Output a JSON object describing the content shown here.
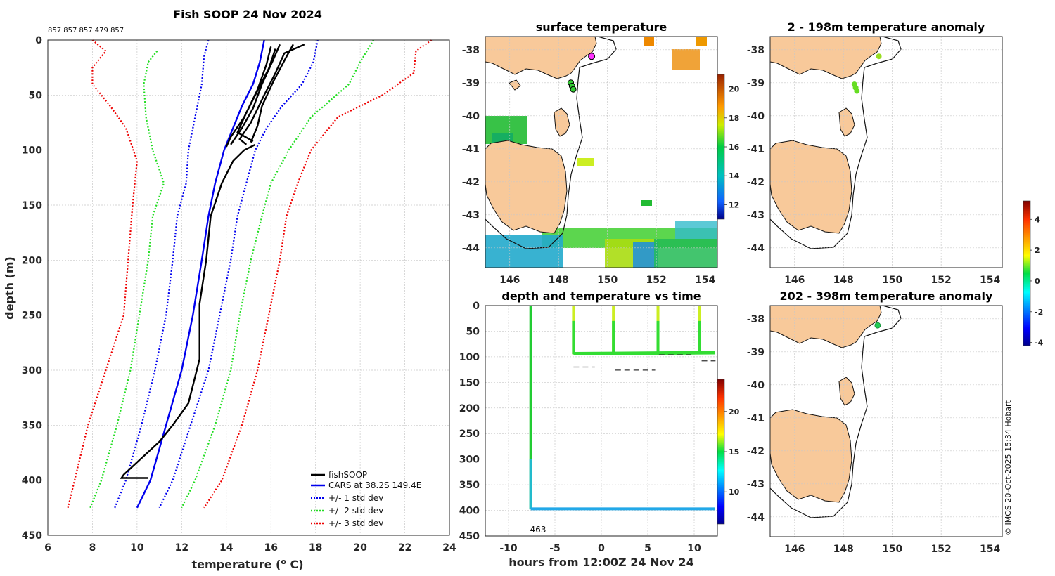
{
  "main_title": "Fish SOOP 24 Nov 2024",
  "drop_ids_label": "857 857 857 479 857",
  "credit": "© IMOS 20-Oct-2025 15:34 Hobart",
  "chart_data": [
    {
      "type": "line",
      "id": "profile",
      "title": "Fish SOOP 24 Nov 2024",
      "xlabel": "temperature (°C)",
      "ylabel": "depth (m)",
      "xlim": [
        6,
        24
      ],
      "ylim": [
        450,
        0
      ],
      "xticks": [
        "6",
        "8",
        "10",
        "12",
        "14",
        "16",
        "18",
        "20",
        "22",
        "24"
      ],
      "yticks": [
        "0",
        "50",
        "100",
        "150",
        "200",
        "250",
        "300",
        "350",
        "400",
        "450"
      ],
      "legend": {
        "placement": "bottom-right",
        "entries": [
          "fishSOOP",
          "CARS at 38.2S 149.4E",
          "+/- 1 std dev",
          "+/- 2 std dev",
          "+/- 3 std dev"
        ]
      },
      "series": [
        {
          "name": "CARS at 38.2S 149.4E",
          "color": "#0000ee",
          "style": "solid",
          "points": [
            [
              15.7,
              0
            ],
            [
              15.5,
              20
            ],
            [
              15.2,
              40
            ],
            [
              14.7,
              60
            ],
            [
              14.3,
              80
            ],
            [
              13.9,
              100
            ],
            [
              13.5,
              130
            ],
            [
              13.2,
              160
            ],
            [
              12.9,
              200
            ],
            [
              12.5,
              250
            ],
            [
              12.0,
              300
            ],
            [
              11.3,
              350
            ],
            [
              10.6,
              400
            ],
            [
              10.0,
              425
            ]
          ]
        },
        {
          "name": "+1 std",
          "color": "#0000ee",
          "style": "dot",
          "points": [
            [
              13.2,
              0
            ],
            [
              13.0,
              15
            ],
            [
              12.9,
              40
            ],
            [
              12.6,
              70
            ],
            [
              12.3,
              100
            ],
            [
              12.2,
              130
            ],
            [
              11.8,
              160
            ],
            [
              11.6,
              200
            ],
            [
              11.3,
              250
            ],
            [
              10.8,
              300
            ],
            [
              10.2,
              350
            ],
            [
              9.5,
              400
            ],
            [
              9.0,
              425
            ]
          ]
        },
        {
          "name": "-1 std",
          "color": "#0000ee",
          "style": "dot",
          "points": [
            [
              18.1,
              0
            ],
            [
              17.9,
              20
            ],
            [
              17.4,
              40
            ],
            [
              16.5,
              60
            ],
            [
              15.8,
              80
            ],
            [
              15.3,
              100
            ],
            [
              14.9,
              130
            ],
            [
              14.5,
              160
            ],
            [
              14.2,
              200
            ],
            [
              13.7,
              250
            ],
            [
              13.2,
              300
            ],
            [
              12.4,
              350
            ],
            [
              11.6,
              400
            ],
            [
              11.0,
              425
            ]
          ]
        },
        {
          "name": "+2 std",
          "color": "#22dd22",
          "style": "dot",
          "points": [
            [
              10.9,
              10
            ],
            [
              10.5,
              20
            ],
            [
              10.3,
              40
            ],
            [
              10.4,
              70
            ],
            [
              10.7,
              100
            ],
            [
              11.2,
              130
            ],
            [
              10.7,
              160
            ],
            [
              10.5,
              200
            ],
            [
              10.1,
              250
            ],
            [
              9.7,
              300
            ],
            [
              9.1,
              350
            ],
            [
              8.4,
              400
            ],
            [
              7.9,
              425
            ]
          ]
        },
        {
          "name": "-2 std",
          "color": "#22dd22",
          "style": "dot",
          "points": [
            [
              20.6,
              0
            ],
            [
              20.0,
              20
            ],
            [
              19.5,
              40
            ],
            [
              17.8,
              70
            ],
            [
              16.8,
              100
            ],
            [
              16.0,
              130
            ],
            [
              15.6,
              160
            ],
            [
              15.1,
              200
            ],
            [
              14.6,
              250
            ],
            [
              14.2,
              300
            ],
            [
              13.5,
              350
            ],
            [
              12.6,
              400
            ],
            [
              12.0,
              425
            ]
          ]
        },
        {
          "name": "+3 std",
          "color": "#ee0000",
          "style": "dot",
          "points": [
            [
              8.0,
              0
            ],
            [
              8.6,
              10
            ],
            [
              8.0,
              25
            ],
            [
              8.0,
              40
            ],
            [
              8.8,
              60
            ],
            [
              9.5,
              80
            ],
            [
              10.0,
              110
            ],
            [
              9.8,
              150
            ],
            [
              9.6,
              200
            ],
            [
              9.4,
              250
            ],
            [
              8.6,
              300
            ],
            [
              7.8,
              350
            ],
            [
              7.2,
              400
            ],
            [
              6.9,
              425
            ]
          ]
        },
        {
          "name": "-3 std",
          "color": "#ee0000",
          "style": "dot",
          "points": [
            [
              23.2,
              0
            ],
            [
              22.5,
              10
            ],
            [
              22.4,
              30
            ],
            [
              21.0,
              50
            ],
            [
              19.0,
              70
            ],
            [
              17.8,
              100
            ],
            [
              17.2,
              130
            ],
            [
              16.7,
              160
            ],
            [
              16.4,
              200
            ],
            [
              15.9,
              250
            ],
            [
              15.4,
              300
            ],
            [
              14.7,
              350
            ],
            [
              13.8,
              400
            ],
            [
              13.0,
              425
            ]
          ]
        },
        {
          "name": "fishSOOP",
          "color": "#000000",
          "style": "solid",
          "points": [
            [
              15.3,
              95
            ],
            [
              14.8,
              100
            ],
            [
              14.3,
              110
            ],
            [
              13.8,
              130
            ],
            [
              13.3,
              160
            ],
            [
              13.1,
              200
            ],
            [
              12.8,
              240
            ],
            [
              12.8,
              290
            ],
            [
              12.3,
              330
            ],
            [
              11.6,
              350
            ],
            [
              11.0,
              365
            ],
            [
              10.2,
              380
            ],
            [
              9.4,
              395
            ],
            [
              9.3,
              398
            ],
            [
              10.5,
              398
            ]
          ]
        },
        {
          "name": "fishSOOP",
          "color": "#000000",
          "style": "solid",
          "points": [
            [
              17.5,
              4
            ],
            [
              16.6,
              12
            ],
            [
              16.2,
              30
            ],
            [
              15.7,
              50
            ],
            [
              15.1,
              75
            ],
            [
              14.6,
              90
            ],
            [
              14.9,
              95
            ]
          ]
        },
        {
          "name": "fishSOOP",
          "color": "#000000",
          "style": "solid",
          "points": [
            [
              16.4,
              4
            ],
            [
              16.1,
              18
            ],
            [
              15.6,
              40
            ],
            [
              15.2,
              62
            ],
            [
              14.7,
              80
            ],
            [
              14.2,
              95
            ]
          ]
        },
        {
          "name": "fishSOOP",
          "color": "#000000",
          "style": "solid",
          "points": [
            [
              16.2,
              8
            ],
            [
              15.9,
              26
            ],
            [
              15.3,
              50
            ],
            [
              14.8,
              70
            ],
            [
              14.2,
              88
            ],
            [
              14.0,
              97
            ]
          ]
        },
        {
          "name": "fishSOOP",
          "color": "#000000",
          "style": "solid",
          "points": [
            [
              17.0,
              4
            ],
            [
              16.7,
              15
            ],
            [
              16.1,
              38
            ],
            [
              15.6,
              60
            ],
            [
              15.4,
              78
            ],
            [
              15.1,
              93
            ]
          ]
        },
        {
          "name": "fishSOOP",
          "color": "#000000",
          "style": "solid",
          "points": [
            [
              16.0,
              6
            ],
            [
              15.8,
              22
            ],
            [
              15.4,
              45
            ],
            [
              14.9,
              66
            ],
            [
              14.5,
              84
            ],
            [
              15.2,
              92
            ]
          ]
        }
      ]
    },
    {
      "type": "heatmap",
      "id": "surface_map",
      "title": "surface temperature",
      "xlim": [
        145,
        154.5
      ],
      "ylim": [
        -44.6,
        -37.6
      ],
      "xticks": [
        "146",
        "148",
        "150",
        "152",
        "154"
      ],
      "yticks": [
        "-38",
        "-39",
        "-40",
        "-41",
        "-42",
        "-43",
        "-44"
      ],
      "colorbar": {
        "range": [
          11,
          21
        ],
        "ticks": [
          "12",
          "14",
          "16",
          "18",
          "20"
        ]
      },
      "track_points": [
        [
          149.35,
          -38.2
        ],
        [
          148.5,
          -39.0
        ],
        [
          148.55,
          -39.1
        ],
        [
          148.6,
          -39.2
        ]
      ]
    },
    {
      "type": "scatter",
      "id": "depth_time",
      "title": "depth and temperature vs time",
      "xlabel": "hours from 12:00Z 24 Nov 24",
      "xlim": [
        -12.5,
        12.5
      ],
      "ylim": [
        450,
        0
      ],
      "xticks": [
        "-10",
        "-5",
        "0",
        "5",
        "10"
      ],
      "yticks": [
        "0",
        "50",
        "100",
        "150",
        "200",
        "250",
        "300",
        "350",
        "400",
        "450"
      ],
      "annotation": "463",
      "colorbar": {
        "range": [
          6,
          24
        ],
        "ticks": [
          "10",
          "15",
          "20"
        ]
      }
    },
    {
      "type": "scatter",
      "id": "anomaly_shallow",
      "title": "2 - 198m temperature anomaly",
      "xlim": [
        145,
        154.5
      ],
      "ylim": [
        -44.6,
        -37.6
      ],
      "xticks": [
        "146",
        "148",
        "150",
        "152",
        "154"
      ],
      "yticks": [
        "-38",
        "-39",
        "-40",
        "-41",
        "-42",
        "-43",
        "-44"
      ],
      "points": [
        [
          149.45,
          -38.2
        ],
        [
          148.45,
          -39.05
        ],
        [
          148.5,
          -39.15
        ],
        [
          148.55,
          -39.25
        ]
      ]
    },
    {
      "type": "scatter",
      "id": "anomaly_deep",
      "title": "202 - 398m temperature anomaly",
      "xlim": [
        145,
        154.5
      ],
      "ylim": [
        -44.6,
        -37.6
      ],
      "xticks": [
        "146",
        "148",
        "150",
        "152",
        "154"
      ],
      "yticks": [
        "-38",
        "-39",
        "-40",
        "-41",
        "-42",
        "-43",
        "-44"
      ],
      "points": [
        [
          149.4,
          -38.2
        ]
      ],
      "colorbar": {
        "range": [
          -4.2,
          5.2
        ],
        "ticks": [
          "-4",
          "-2",
          "0",
          "2",
          "4"
        ]
      }
    }
  ]
}
